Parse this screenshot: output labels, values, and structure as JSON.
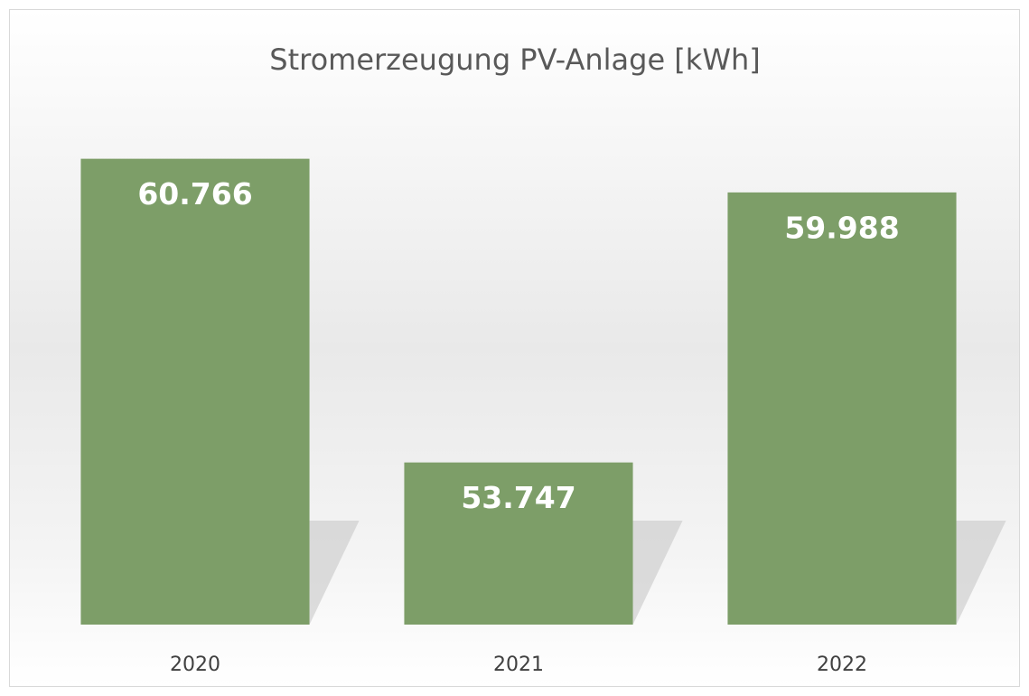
{
  "chart_data": {
    "type": "bar",
    "title": "Stromerzeugung PV-Anlage [kWh]",
    "categories": [
      "2020",
      "2021",
      "2022"
    ],
    "values": [
      60766,
      53747,
      59988
    ],
    "value_labels": [
      "60.766",
      "53.747",
      "59.988"
    ],
    "color": "#7d9e68",
    "ylim": [
      50000,
      61500
    ]
  }
}
